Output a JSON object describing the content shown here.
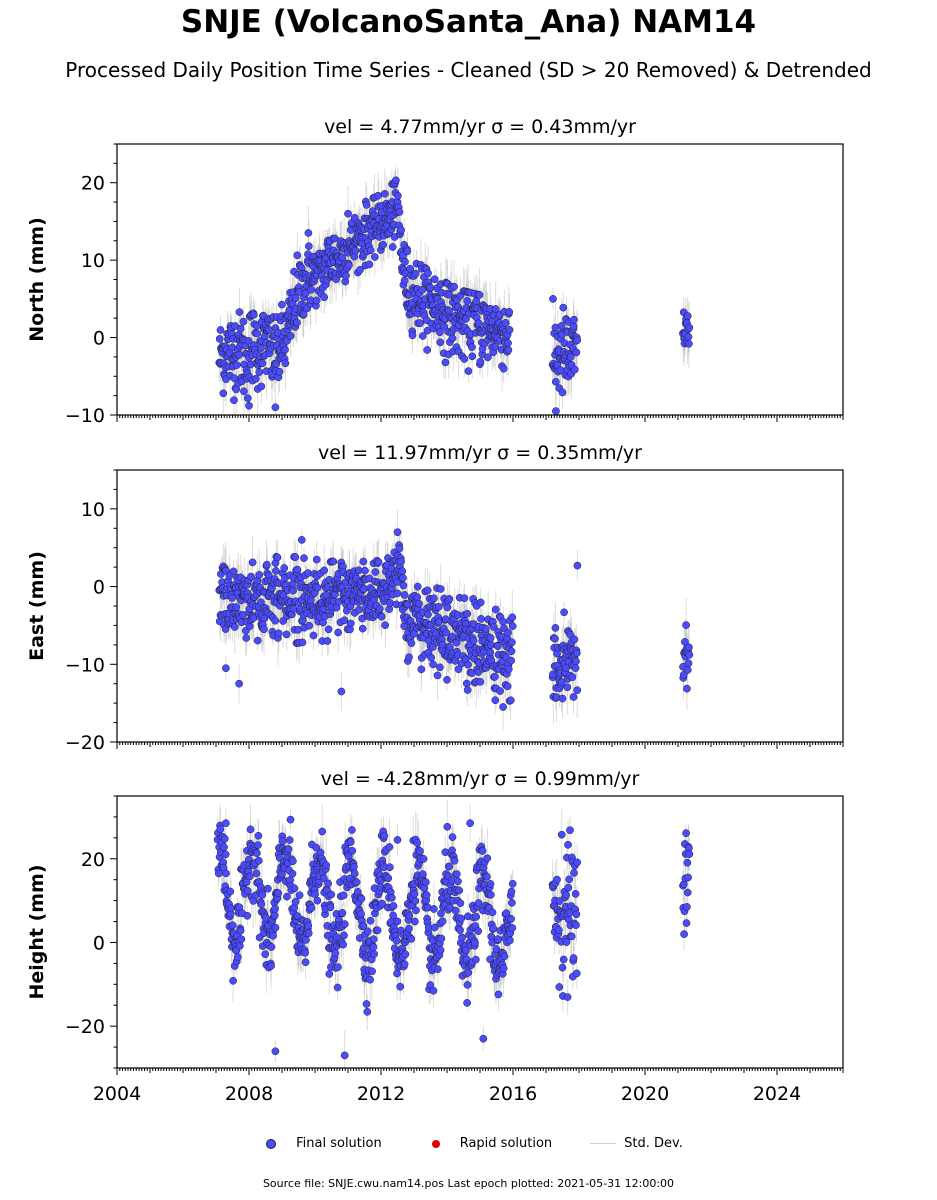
{
  "title": "SNJE (VolcanoSanta_Ana) NAM14",
  "subtitle": "Processed Daily Position Time Series - Cleaned (SD > 20 Removed) & Detrended",
  "legend": {
    "final": "Final solution",
    "rapid": "Rapid solution",
    "stddev": "Std. Dev."
  },
  "colors": {
    "final": "#4a4aff",
    "rapid": "#dd0000",
    "stddev": "#b4b4b4"
  },
  "source": "Source file: SNJE.cwu.nam14.pos  Last epoch plotted: 2021-05-31 12:00:00",
  "chart_data": [
    {
      "type": "scatter",
      "title": "vel = 4.77mm/yr   σ = 0.43mm/yr",
      "ylabel": "North (mm)",
      "xlim": [
        2004,
        2026
      ],
      "ylim": [
        -10,
        25
      ],
      "yticks": [
        -10,
        0,
        10,
        20
      ],
      "ytick_labels": [
        "−10",
        "0",
        "10",
        "20"
      ],
      "xticks": [
        2004,
        2008,
        2012,
        2016,
        2020,
        2024
      ],
      "xtick_labels": [],
      "series": [
        {
          "values_by_year": [
            [
              2007.1,
              -2.5
            ],
            [
              2007.3,
              -1.8
            ],
            [
              2007.5,
              -2.0
            ],
            [
              2007.7,
              -1.2
            ],
            [
              2007.9,
              -2.8
            ],
            [
              2008.1,
              -0.8
            ],
            [
              2008.3,
              -1.5
            ],
            [
              2008.5,
              -0.5
            ],
            [
              2008.7,
              -2.0
            ],
            [
              2008.9,
              -1.5
            ],
            [
              2009.1,
              -0.5
            ],
            [
              2009.3,
              3.0
            ],
            [
              2009.5,
              5.5
            ],
            [
              2009.7,
              7.0
            ],
            [
              2009.9,
              8.0
            ],
            [
              2010.1,
              7.5
            ],
            [
              2010.3,
              9.0
            ],
            [
              2010.5,
              10.5
            ],
            [
              2010.7,
              10.0
            ],
            [
              2010.9,
              11.0
            ],
            [
              2011.1,
              12.0
            ],
            [
              2011.3,
              12.5
            ],
            [
              2011.5,
              13.5
            ],
            [
              2011.7,
              14.0
            ],
            [
              2011.9,
              14.5
            ],
            [
              2012.1,
              15.0
            ],
            [
              2012.3,
              15.5
            ],
            [
              2012.5,
              17.0
            ],
            [
              2012.7,
              8.0
            ],
            [
              2012.9,
              6.0
            ],
            [
              2013.1,
              5.5
            ],
            [
              2013.3,
              5.0
            ],
            [
              2013.5,
              4.5
            ],
            [
              2013.7,
              4.0
            ],
            [
              2013.9,
              3.5
            ],
            [
              2014.1,
              3.0
            ],
            [
              2014.3,
              2.5
            ],
            [
              2014.5,
              2.0
            ],
            [
              2014.7,
              2.5
            ],
            [
              2014.9,
              2.0
            ],
            [
              2015.1,
              1.5
            ],
            [
              2015.3,
              1.0
            ],
            [
              2015.5,
              1.2
            ],
            [
              2015.7,
              0.8
            ],
            [
              2015.9,
              0.5
            ],
            [
              2017.3,
              -1.0
            ],
            [
              2017.5,
              -0.5
            ],
            [
              2017.7,
              0.0
            ],
            [
              2017.9,
              0.5
            ],
            [
              2021.2,
              1.0
            ],
            [
              2021.3,
              1.5
            ]
          ],
          "envelope": [
            [
              2007.1,
              -7.5,
              2.5
            ],
            [
              2007.5,
              -8.0,
              3.5
            ],
            [
              2008.0,
              -9.0,
              3.0
            ],
            [
              2008.5,
              -6.5,
              3.5
            ],
            [
              2008.9,
              -9.0,
              2.5
            ],
            [
              2009.2,
              -1.0,
              8.0
            ],
            [
              2009.5,
              2.5,
              13.5
            ],
            [
              2010.0,
              4.0,
              12.5
            ],
            [
              2010.5,
              6.0,
              15.5
            ],
            [
              2011.0,
              7.5,
              15.0
            ],
            [
              2011.5,
              9.0,
              17.5
            ],
            [
              2012.0,
              10.5,
              18.5
            ],
            [
              2012.5,
              11.5,
              20.5
            ],
            [
              2012.7,
              2.0,
              12.0
            ],
            [
              2013.0,
              0.0,
              10.0
            ],
            [
              2013.5,
              -2.0,
              8.5
            ],
            [
              2014.0,
              -3.5,
              7.0
            ],
            [
              2014.5,
              -5.0,
              6.0
            ],
            [
              2015.0,
              -5.5,
              5.5
            ],
            [
              2015.5,
              -3.5,
              5.0
            ],
            [
              2015.9,
              -7.0,
              3.5
            ]
          ],
          "clusters": [
            [
              2017.2,
              2017.95,
              -9.5,
              5.0
            ],
            [
              2021.15,
              2021.35,
              -2.0,
              4.0
            ]
          ],
          "outliers": [
            [
              2009.8,
              13.5
            ],
            [
              2008.0,
              -8.8
            ],
            [
              2008.8,
              -9.0
            ],
            [
              2017.3,
              -9.5
            ],
            [
              2011.0,
              16.0
            ]
          ]
        }
      ]
    },
    {
      "type": "scatter",
      "title": "vel = 11.97mm/yr   σ = 0.35mm/yr",
      "ylabel": "East (mm)",
      "xlim": [
        2004,
        2026
      ],
      "ylim": [
        -20,
        15
      ],
      "yticks": [
        -20,
        -10,
        0,
        10
      ],
      "ytick_labels": [
        "−20",
        "−10",
        "0",
        "10"
      ],
      "xticks": [
        2004,
        2008,
        2012,
        2016,
        2020,
        2024
      ],
      "xtick_labels": [],
      "series": [
        {
          "values_by_year": [
            [
              2007.1,
              -1.0
            ],
            [
              2007.5,
              -2.0
            ],
            [
              2008.0,
              -1.5
            ],
            [
              2008.5,
              -2.0
            ],
            [
              2009.0,
              -1.0
            ],
            [
              2009.5,
              -1.5
            ],
            [
              2010.0,
              -1.5
            ],
            [
              2010.5,
              -1.0
            ],
            [
              2011.0,
              -1.2
            ],
            [
              2011.5,
              -1.0
            ],
            [
              2012.0,
              -0.5
            ],
            [
              2012.3,
              0.5
            ],
            [
              2012.6,
              3.0
            ],
            [
              2012.8,
              -5.0
            ],
            [
              2013.2,
              -4.5
            ],
            [
              2013.6,
              -5.5
            ],
            [
              2014.0,
              -6.0
            ],
            [
              2014.4,
              -6.0
            ],
            [
              2014.8,
              -7.5
            ],
            [
              2015.2,
              -8.0
            ],
            [
              2015.6,
              -8.5
            ],
            [
              2015.9,
              -10.0
            ],
            [
              2017.3,
              -7.5
            ],
            [
              2017.6,
              -9.0
            ],
            [
              2017.9,
              -10.0
            ],
            [
              2021.25,
              -10.0
            ]
          ],
          "envelope": [
            [
              2007.1,
              -6.5,
              3.0
            ],
            [
              2008.0,
              -7.0,
              3.0
            ],
            [
              2009.0,
              -7.5,
              4.0
            ],
            [
              2010.0,
              -7.0,
              3.5
            ],
            [
              2011.0,
              -7.0,
              3.0
            ],
            [
              2012.0,
              -6.0,
              3.5
            ],
            [
              2012.5,
              -2.0,
              7.0
            ],
            [
              2012.7,
              -10.0,
              0.0
            ],
            [
              2013.5,
              -11.0,
              0.0
            ],
            [
              2014.5,
              -13.0,
              -1.0
            ],
            [
              2015.5,
              -15.5,
              -3.0
            ],
            [
              2016.0,
              -14.5,
              -4.0
            ]
          ],
          "clusters": [
            [
              2017.2,
              2017.95,
              -16.5,
              -3.0
            ],
            [
              2021.15,
              2021.35,
              -15.0,
              -3.5
            ]
          ],
          "outliers": [
            [
              2007.3,
              -10.5
            ],
            [
              2007.7,
              -12.5
            ],
            [
              2009.6,
              6.0
            ],
            [
              2010.8,
              -13.5
            ],
            [
              2012.5,
              7.0
            ],
            [
              2017.95,
              2.7
            ],
            [
              2015.7,
              -15.5
            ]
          ]
        }
      ]
    },
    {
      "type": "scatter",
      "title": "vel = -4.28mm/yr   σ = 0.99mm/yr",
      "ylabel": "Height (mm)",
      "xlim": [
        2004,
        2026
      ],
      "ylim": [
        -30,
        35
      ],
      "yticks": [
        -20,
        0,
        20
      ],
      "ytick_labels": [
        "−20",
        "0",
        "20"
      ],
      "xticks": [
        2004,
        2008,
        2012,
        2016,
        2020,
        2024
      ],
      "xtick_labels": [
        "2004",
        "2008",
        "2012",
        "2016",
        "2020",
        "2024"
      ],
      "series": [
        {
          "seasonal": {
            "start": 2007.0,
            "end": 2016.0,
            "amplitude": 11,
            "offset_start": 12,
            "offset_end": 4
          },
          "clusters": [
            [
              2017.2,
              2017.95,
              -13.5,
              29.0
            ],
            [
              2021.15,
              2021.35,
              2.0,
              29.5
            ]
          ],
          "outliers": [
            [
              2008.8,
              -26.0
            ],
            [
              2010.9,
              -27.0
            ],
            [
              2007.3,
              28.5
            ],
            [
              2012.5,
              24.5
            ],
            [
              2014.7,
              28.5
            ],
            [
              2015.1,
              -23.0
            ]
          ]
        }
      ]
    }
  ]
}
